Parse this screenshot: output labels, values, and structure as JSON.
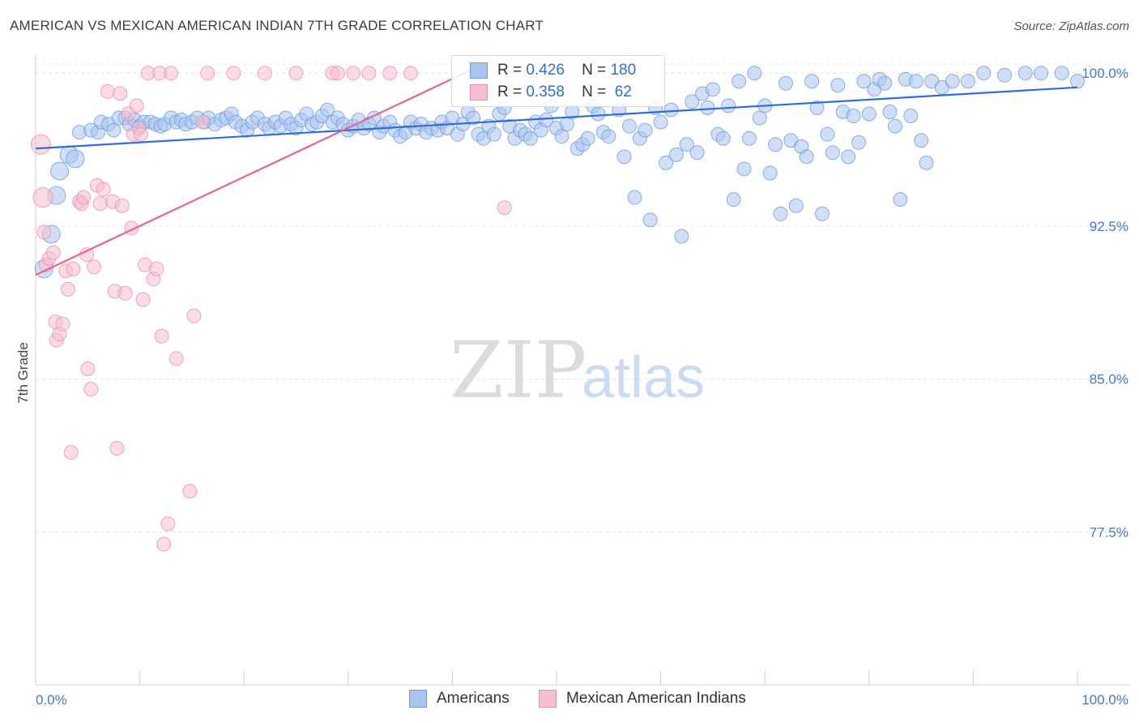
{
  "title": "AMERICAN VS MEXICAN AMERICAN INDIAN 7TH GRADE CORRELATION CHART",
  "source": "Source: ZipAtlas.com",
  "watermark": {
    "zip": "ZIP",
    "atlas": "atlas"
  },
  "legend_stats": [
    {
      "r_label": "R =",
      "r_value": "0.426",
      "n_label": "N =",
      "n_value": "180"
    },
    {
      "r_label": "R =",
      "r_value": "0.358",
      "n_label": "N =",
      "n_value": " 62"
    }
  ],
  "chart_data": {
    "type": "scatter",
    "xlabel": "",
    "ylabel": "7th Grade",
    "xlim": [
      0,
      100
    ],
    "ylim": [
      70.0,
      101.2
    ],
    "x_tick_labels": [
      "0.0%",
      "100.0%"
    ],
    "y_ticks": [
      77.5,
      85.0,
      92.5,
      100.0
    ],
    "y_tick_labels": [
      "77.5%",
      "85.0%",
      "92.5%",
      "100.0%"
    ],
    "grid": true,
    "legend": "bottom-center",
    "colors": {
      "americans_fill": "#a9c4ec",
      "americans_stroke": "#6f9be0",
      "americans_line": "#2f6fd4",
      "mexican_fill": "#f5bfd0",
      "mexican_stroke": "#ec8fae",
      "mexican_line": "#e5668f",
      "tick_text": "#4a76c4"
    },
    "series": [
      {
        "name": "Americans",
        "trend": {
          "x": [
            0,
            100
          ],
          "y": [
            96.3,
            99.3
          ]
        },
        "points": [
          [
            0.8,
            90.4
          ],
          [
            1.5,
            92.1
          ],
          [
            2.0,
            94.0
          ],
          [
            2.3,
            95.2
          ],
          [
            3.2,
            96.0
          ],
          [
            3.8,
            95.8
          ],
          [
            4.2,
            97.1
          ],
          [
            5.3,
            97.2
          ],
          [
            6.0,
            97.1
          ],
          [
            6.3,
            97.6
          ],
          [
            7.0,
            97.5
          ],
          [
            7.5,
            97.2
          ],
          [
            8.0,
            97.8
          ],
          [
            8.6,
            97.8
          ],
          [
            9.0,
            97.5
          ],
          [
            9.5,
            97.7
          ],
          [
            10.0,
            97.4
          ],
          [
            10.4,
            97.6
          ],
          [
            11.0,
            97.6
          ],
          [
            11.5,
            97.5
          ],
          [
            12.0,
            97.4
          ],
          [
            12.4,
            97.5
          ],
          [
            13.0,
            97.8
          ],
          [
            13.5,
            97.6
          ],
          [
            14.0,
            97.7
          ],
          [
            14.4,
            97.5
          ],
          [
            15.0,
            97.6
          ],
          [
            15.5,
            97.8
          ],
          [
            16.2,
            97.6
          ],
          [
            16.6,
            97.8
          ],
          [
            17.2,
            97.5
          ],
          [
            17.8,
            97.7
          ],
          [
            18.3,
            97.8
          ],
          [
            18.8,
            98.0
          ],
          [
            19.2,
            97.6
          ],
          [
            19.8,
            97.4
          ],
          [
            20.3,
            97.2
          ],
          [
            20.8,
            97.6
          ],
          [
            21.3,
            97.8
          ],
          [
            22.0,
            97.5
          ],
          [
            22.4,
            97.3
          ],
          [
            23.0,
            97.6
          ],
          [
            23.5,
            97.4
          ],
          [
            24.0,
            97.8
          ],
          [
            24.5,
            97.5
          ],
          [
            25.0,
            97.3
          ],
          [
            25.5,
            97.7
          ],
          [
            26.0,
            98.0
          ],
          [
            26.5,
            97.5
          ],
          [
            27.0,
            97.6
          ],
          [
            27.5,
            97.9
          ],
          [
            28.0,
            98.2
          ],
          [
            28.5,
            97.6
          ],
          [
            29.0,
            97.8
          ],
          [
            29.5,
            97.5
          ],
          [
            30.0,
            97.2
          ],
          [
            30.5,
            97.4
          ],
          [
            31.0,
            97.7
          ],
          [
            31.5,
            97.3
          ],
          [
            32.0,
            97.5
          ],
          [
            32.5,
            97.8
          ],
          [
            33.0,
            97.1
          ],
          [
            33.4,
            97.4
          ],
          [
            34.0,
            97.6
          ],
          [
            34.5,
            97.2
          ],
          [
            35.0,
            96.9
          ],
          [
            35.5,
            97.1
          ],
          [
            36.0,
            97.6
          ],
          [
            36.5,
            97.3
          ],
          [
            37.0,
            97.5
          ],
          [
            37.5,
            97.1
          ],
          [
            38.0,
            97.3
          ],
          [
            38.6,
            97.2
          ],
          [
            39.0,
            97.6
          ],
          [
            39.5,
            97.3
          ],
          [
            40.0,
            97.8
          ],
          [
            40.5,
            97.0
          ],
          [
            41.0,
            97.5
          ],
          [
            41.5,
            98.1
          ],
          [
            42.0,
            97.8
          ],
          [
            42.5,
            97.0
          ],
          [
            43.0,
            96.8
          ],
          [
            43.5,
            97.4
          ],
          [
            44.0,
            97.0
          ],
          [
            44.5,
            98.0
          ],
          [
            45.0,
            98.3
          ],
          [
            45.5,
            97.4
          ],
          [
            46.0,
            96.8
          ],
          [
            46.5,
            97.2
          ],
          [
            47.0,
            97.0
          ],
          [
            47.5,
            96.8
          ],
          [
            48.0,
            97.6
          ],
          [
            48.5,
            97.2
          ],
          [
            49.0,
            97.7
          ],
          [
            49.5,
            98.4
          ],
          [
            50.0,
            97.3
          ],
          [
            50.5,
            96.9
          ],
          [
            51.0,
            97.5
          ],
          [
            51.5,
            98.1
          ],
          [
            52.0,
            96.3
          ],
          [
            52.5,
            96.5
          ],
          [
            53.0,
            96.8
          ],
          [
            53.5,
            98.4
          ],
          [
            54.0,
            98.0
          ],
          [
            54.5,
            97.1
          ],
          [
            55.0,
            96.9
          ],
          [
            56.0,
            98.2
          ],
          [
            56.5,
            95.9
          ],
          [
            57.0,
            97.4
          ],
          [
            57.5,
            93.9
          ],
          [
            58.0,
            96.8
          ],
          [
            58.5,
            97.2
          ],
          [
            59.0,
            92.8
          ],
          [
            59.5,
            98.3
          ],
          [
            60.0,
            97.6
          ],
          [
            60.5,
            95.6
          ],
          [
            61.0,
            98.2
          ],
          [
            61.5,
            96.0
          ],
          [
            62.0,
            92.0
          ],
          [
            62.5,
            96.5
          ],
          [
            63.0,
            98.6
          ],
          [
            63.5,
            96.1
          ],
          [
            64.0,
            99.0
          ],
          [
            64.5,
            98.3
          ],
          [
            65.0,
            99.2
          ],
          [
            65.5,
            97.0
          ],
          [
            66.0,
            96.8
          ],
          [
            66.5,
            98.4
          ],
          [
            67.0,
            93.8
          ],
          [
            67.5,
            99.6
          ],
          [
            68.0,
            95.3
          ],
          [
            68.5,
            96.8
          ],
          [
            69.0,
            100.0
          ],
          [
            69.5,
            97.8
          ],
          [
            70.0,
            98.4
          ],
          [
            70.5,
            95.1
          ],
          [
            71.0,
            96.5
          ],
          [
            71.5,
            93.1
          ],
          [
            72.0,
            99.5
          ],
          [
            72.5,
            96.7
          ],
          [
            73.0,
            93.5
          ],
          [
            73.5,
            96.4
          ],
          [
            74.0,
            95.9
          ],
          [
            74.5,
            99.6
          ],
          [
            75.0,
            98.3
          ],
          [
            75.5,
            93.1
          ],
          [
            76.0,
            97.0
          ],
          [
            76.5,
            96.1
          ],
          [
            77.0,
            99.4
          ],
          [
            77.5,
            98.1
          ],
          [
            78.0,
            95.9
          ],
          [
            78.5,
            97.9
          ],
          [
            79.0,
            96.6
          ],
          [
            79.5,
            99.6
          ],
          [
            80.0,
            98.0
          ],
          [
            80.5,
            99.2
          ],
          [
            81.0,
            99.7
          ],
          [
            81.5,
            99.5
          ],
          [
            82.0,
            98.1
          ],
          [
            82.5,
            97.4
          ],
          [
            83.0,
            93.8
          ],
          [
            83.5,
            99.7
          ],
          [
            84.0,
            97.9
          ],
          [
            84.5,
            99.6
          ],
          [
            85.0,
            96.7
          ],
          [
            85.5,
            95.6
          ],
          [
            86.0,
            99.6
          ],
          [
            87.0,
            99.3
          ],
          [
            88.0,
            99.6
          ],
          [
            89.5,
            99.6
          ],
          [
            91.0,
            100.0
          ],
          [
            93.0,
            99.9
          ],
          [
            95.0,
            100.0
          ],
          [
            96.5,
            100.0
          ],
          [
            98.5,
            100.0
          ],
          [
            100.0,
            99.6
          ]
        ]
      },
      {
        "name": "Mexican American Indians",
        "trend": {
          "x": [
            0,
            42
          ],
          "y": [
            90.1,
            100.2
          ]
        },
        "points": [
          [
            0.5,
            96.5
          ],
          [
            0.7,
            93.9
          ],
          [
            0.8,
            92.2
          ],
          [
            1.0,
            90.6
          ],
          [
            1.3,
            90.9
          ],
          [
            1.7,
            91.2
          ],
          [
            1.9,
            87.8
          ],
          [
            2.0,
            86.9
          ],
          [
            2.3,
            87.2
          ],
          [
            2.6,
            87.7
          ],
          [
            2.9,
            90.3
          ],
          [
            3.1,
            89.4
          ],
          [
            3.4,
            81.4
          ],
          [
            3.6,
            90.4
          ],
          [
            4.2,
            93.7
          ],
          [
            4.4,
            93.6
          ],
          [
            4.6,
            93.9
          ],
          [
            4.9,
            91.1
          ],
          [
            5.0,
            85.5
          ],
          [
            5.3,
            84.5
          ],
          [
            5.6,
            90.5
          ],
          [
            5.9,
            94.5
          ],
          [
            6.2,
            93.6
          ],
          [
            6.5,
            94.3
          ],
          [
            6.9,
            99.1
          ],
          [
            7.4,
            93.7
          ],
          [
            7.6,
            89.3
          ],
          [
            7.8,
            81.6
          ],
          [
            8.1,
            99.0
          ],
          [
            8.3,
            93.5
          ],
          [
            8.6,
            89.2
          ],
          [
            8.9,
            98.0
          ],
          [
            9.2,
            92.4
          ],
          [
            9.4,
            97.0
          ],
          [
            9.7,
            98.4
          ],
          [
            9.9,
            97.3
          ],
          [
            10.1,
            97.0
          ],
          [
            10.3,
            88.9
          ],
          [
            10.5,
            90.6
          ],
          [
            10.8,
            100.0
          ],
          [
            11.3,
            89.9
          ],
          [
            11.6,
            90.4
          ],
          [
            11.9,
            100.0
          ],
          [
            12.1,
            87.1
          ],
          [
            12.3,
            76.9
          ],
          [
            12.7,
            77.9
          ],
          [
            13.0,
            100.0
          ],
          [
            13.5,
            86.0
          ],
          [
            14.8,
            79.5
          ],
          [
            15.2,
            88.1
          ],
          [
            16.0,
            97.6
          ],
          [
            16.5,
            100.0
          ],
          [
            19.0,
            100.0
          ],
          [
            22.0,
            100.0
          ],
          [
            25.0,
            100.0
          ],
          [
            28.5,
            100.0
          ],
          [
            29.0,
            100.0
          ],
          [
            30.5,
            100.0
          ],
          [
            32.0,
            100.0
          ],
          [
            34.0,
            100.0
          ],
          [
            36.0,
            100.0
          ],
          [
            45.0,
            93.4
          ]
        ]
      }
    ]
  },
  "bottom_legend": [
    {
      "label": "Americans"
    },
    {
      "label": "Mexican American Indians"
    }
  ]
}
